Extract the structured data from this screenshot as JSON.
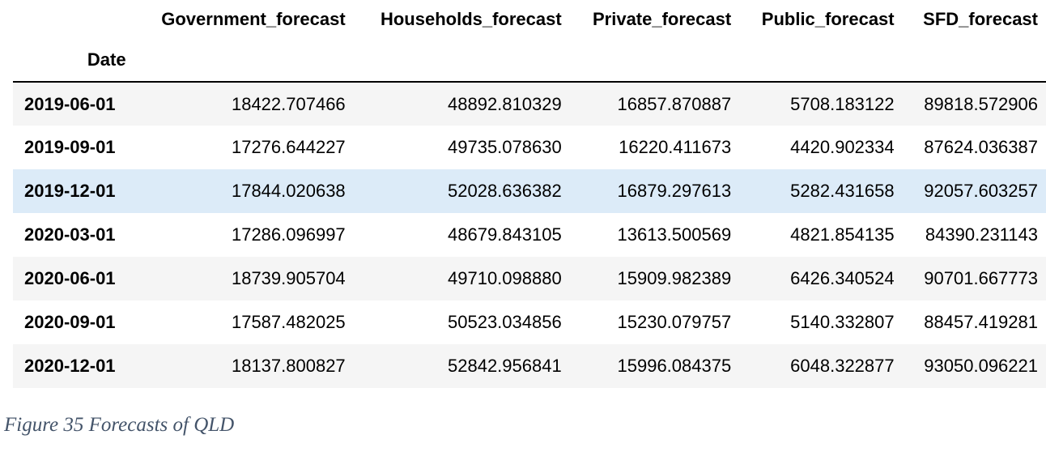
{
  "table": {
    "index_name": "Date",
    "columns": [
      "Government_forecast",
      "Households_forecast",
      "Private_forecast",
      "Public_forecast",
      "SFD_forecast"
    ],
    "rows": [
      {
        "date": "2019-06-01",
        "values": [
          "18422.707466",
          "48892.810329",
          "16857.870887",
          "5708.183122",
          "89818.572906"
        ]
      },
      {
        "date": "2019-09-01",
        "values": [
          "17276.644227",
          "49735.078630",
          "16220.411673",
          "4420.902334",
          "87624.036387"
        ]
      },
      {
        "date": "2019-12-01",
        "values": [
          "17844.020638",
          "52028.636382",
          "16879.297613",
          "5282.431658",
          "92057.603257"
        ]
      },
      {
        "date": "2020-03-01",
        "values": [
          "17286.096997",
          "48679.843105",
          "13613.500569",
          "4821.854135",
          "84390.231143"
        ]
      },
      {
        "date": "2020-06-01",
        "values": [
          "18739.905704",
          "49710.098880",
          "15909.982389",
          "6426.340524",
          "90701.667773"
        ]
      },
      {
        "date": "2020-09-01",
        "values": [
          "17587.482025",
          "50523.034856",
          "15230.079757",
          "5140.332807",
          "88457.419281"
        ]
      },
      {
        "date": "2020-12-01",
        "values": [
          "18137.800827",
          "52842.956841",
          "15996.084375",
          "6048.322877",
          "93050.096221"
        ]
      }
    ],
    "hovered_row": 2
  },
  "caption": "Figure 35 Forecasts of QLD",
  "colors": {
    "row_stripe": "#f5f5f5",
    "row_hover": "#dcebf8",
    "caption": "#44546a"
  }
}
